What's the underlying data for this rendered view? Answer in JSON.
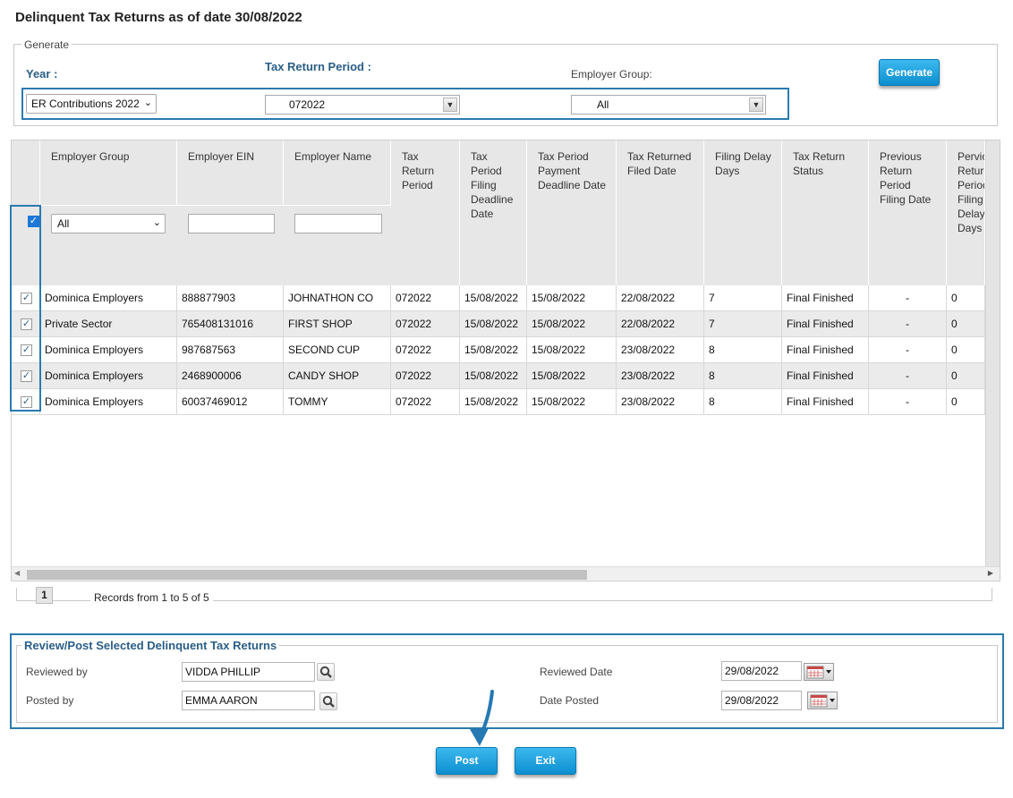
{
  "title": "Delinquent Tax Returns as of date 30/08/2022",
  "generate": {
    "legend": "Generate",
    "year_label": "Year :",
    "period_label": "Tax Return Period :",
    "group_label": "Employer Group:",
    "year_value": "ER Contributions 2022",
    "period_value": "072022",
    "group_value": "All",
    "button": "Generate"
  },
  "table": {
    "columns": [
      "Employer Group",
      "Employer EIN",
      "Employer Name",
      "Tax Return Period",
      "Tax Period Filing Deadline Date",
      "Tax Period Payment Deadline Date",
      "Tax Returned Filed Date",
      "Filing Delay Days",
      "Tax Return Status",
      "Previous Return Period Filing Date",
      "Pervious Return Period Filing Delay Days"
    ],
    "filter_group_value": "All",
    "rows": [
      [
        "Dominica Employers",
        "888877903",
        "JOHNATHON CO",
        "072022",
        "15/08/2022",
        "15/08/2022",
        "22/08/2022",
        "7",
        "Final Finished",
        "-",
        "0"
      ],
      [
        "Private Sector",
        "765408131016",
        "FIRST SHOP",
        "072022",
        "15/08/2022",
        "15/08/2022",
        "22/08/2022",
        "7",
        "Final Finished",
        "-",
        "0"
      ],
      [
        "Dominica Employers",
        "987687563",
        "SECOND CUP",
        "072022",
        "15/08/2022",
        "15/08/2022",
        "23/08/2022",
        "8",
        "Final Finished",
        "-",
        "0"
      ],
      [
        "Dominica Employers",
        "2468900006",
        "CANDY SHOP",
        "072022",
        "15/08/2022",
        "15/08/2022",
        "23/08/2022",
        "8",
        "Final Finished",
        "-",
        "0"
      ],
      [
        "Dominica Employers",
        "60037469012",
        "TOMMY",
        "072022",
        "15/08/2022",
        "15/08/2022",
        "23/08/2022",
        "8",
        "Final Finished",
        "-",
        "0"
      ]
    ]
  },
  "pager": {
    "page": "1",
    "records": "Records from 1 to 5 of 5"
  },
  "review": {
    "legend": "Review/Post Selected Delinquent Tax Returns",
    "reviewed_by_label": "Reviewed by",
    "reviewed_by_value": "VIDDA PHILLIP",
    "posted_by_label": "Posted by",
    "posted_by_value": "EMMA AARON",
    "reviewed_date_label": "Reviewed Date",
    "reviewed_date_value": "29/08/2022",
    "date_posted_label": "Date Posted",
    "date_posted_value": "29/08/2022"
  },
  "buttons": {
    "post": "Post",
    "exit": "Exit"
  },
  "colors": {
    "accent": "#2a7ab0",
    "button": "#1ba3e0"
  }
}
